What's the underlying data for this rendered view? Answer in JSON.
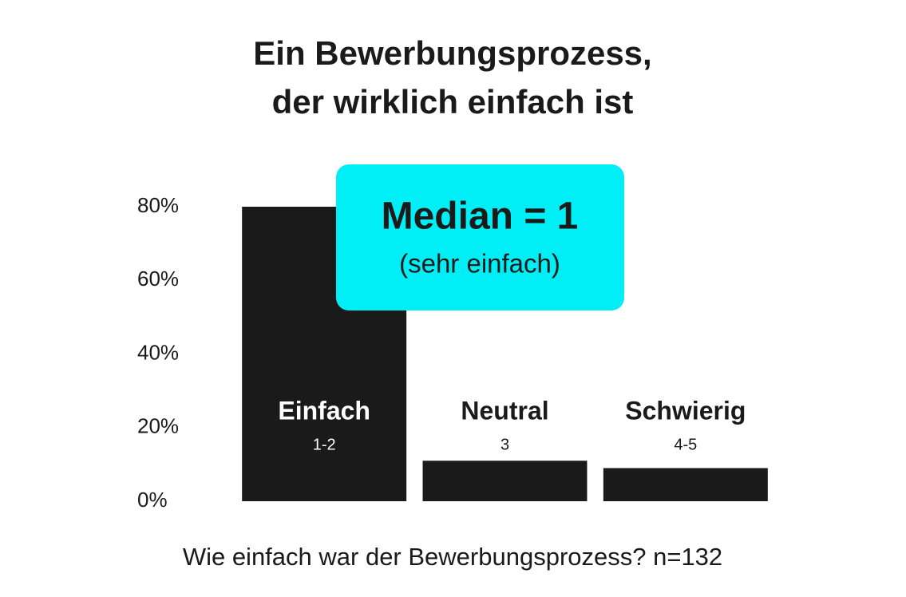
{
  "chart_data": {
    "type": "bar",
    "title": [
      "Ein Bewerbungsprozess,",
      "der wirklich einfach ist"
    ],
    "categories": [
      "Einfach",
      "Neutral",
      "Schwierig"
    ],
    "category_sublabels": [
      "1-2",
      "3",
      "4-5"
    ],
    "values": [
      80,
      11,
      9
    ],
    "color": "#1a1a1a",
    "ylim": [
      0,
      80
    ],
    "yticks": [
      {
        "value": 0,
        "label": "0%"
      },
      {
        "value": 20,
        "label": "20%"
      },
      {
        "value": 40,
        "label": "40%"
      },
      {
        "value": 60,
        "label": "60%"
      },
      {
        "value": 80,
        "label": "80%"
      }
    ],
    "annotation": {
      "title": "Median = 1",
      "subtitle": "(sehr einfach)",
      "color": "#00eef5"
    },
    "x_label": "Wie einfach war der Bewerbungsprozess? n=132"
  }
}
